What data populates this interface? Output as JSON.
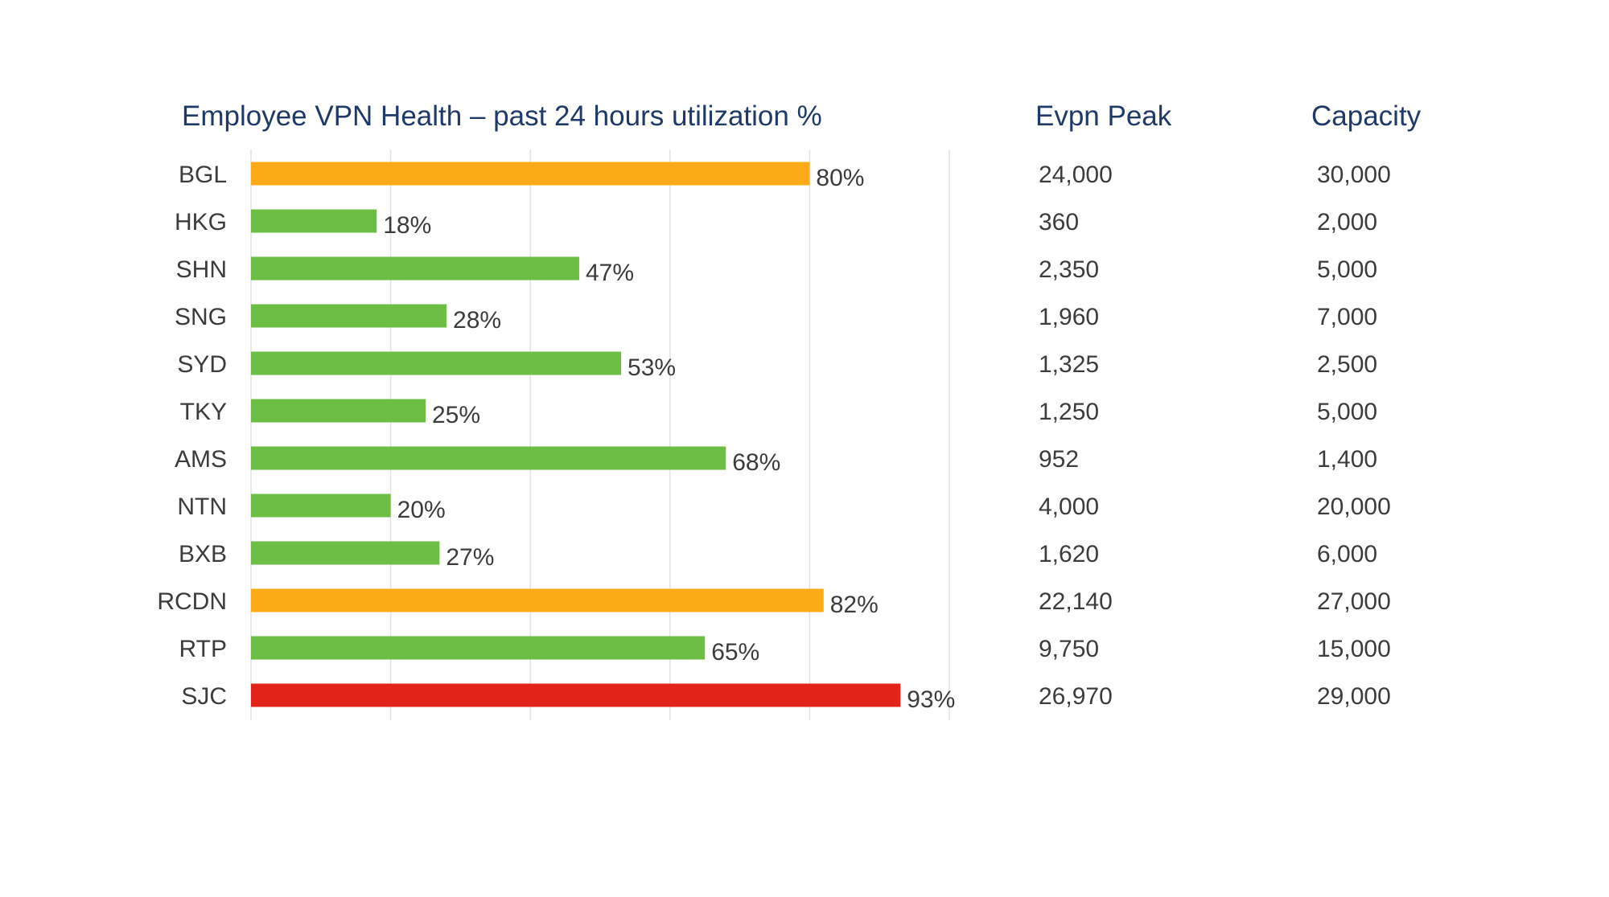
{
  "chart_data": {
    "type": "bar",
    "orientation": "horizontal",
    "title": "Employee VPN Health – past 24 hours utilization %",
    "categories": [
      "BGL",
      "HKG",
      "SHN",
      "SNG",
      "SYD",
      "TKY",
      "AMS",
      "NTN",
      "BXB",
      "RCDN",
      "RTP",
      "SJC"
    ],
    "values": [
      80,
      18,
      47,
      28,
      53,
      25,
      68,
      20,
      27,
      82,
      65,
      93
    ],
    "value_labels": [
      "80%",
      "18%",
      "47%",
      "28%",
      "53%",
      "25%",
      "68%",
      "20%",
      "27%",
      "82%",
      "65%",
      "93%"
    ],
    "bar_colors": [
      "#fbab18",
      "#6cbe45",
      "#6cbe45",
      "#6cbe45",
      "#6cbe45",
      "#6cbe45",
      "#6cbe45",
      "#6cbe45",
      "#6cbe45",
      "#fbab18",
      "#6cbe45",
      "#e2231a"
    ],
    "xlim": [
      0,
      100
    ],
    "grid": true,
    "table": {
      "columns": [
        "Evpn Peak",
        "Capacity"
      ],
      "evpn_peak": [
        "24,000",
        "360",
        "2,350",
        "1,960",
        "1,325",
        "1,250",
        "952",
        "4,000",
        "1,620",
        "22,140",
        "9,750",
        "26,970"
      ],
      "capacity": [
        "30,000",
        "2,000",
        "5,000",
        "7,000",
        "2,500",
        "5,000",
        "1,400",
        "20,000",
        "6,000",
        "27,000",
        "15,000",
        "29,000"
      ]
    }
  },
  "colors": {
    "header_text": "#1f3a68",
    "normal": "#6cbe45",
    "warning": "#fbab18",
    "critical": "#e2231a"
  }
}
